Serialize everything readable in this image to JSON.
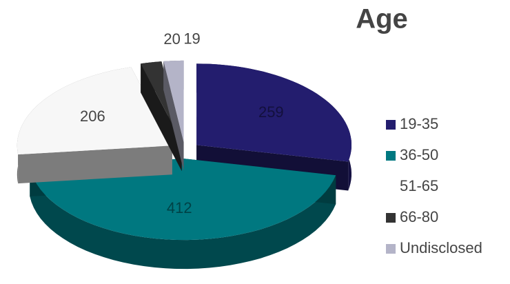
{
  "chart_data": {
    "type": "pie",
    "title": "Age",
    "categories": [
      "19-35",
      "36-50",
      "51-65",
      "66-80",
      "Undisclosed"
    ],
    "values": [
      259,
      412,
      206,
      20,
      19
    ],
    "colors": [
      "#231d6e",
      "#007880",
      "#f7f7f7",
      "#333333",
      "#b4b4c8"
    ]
  }
}
